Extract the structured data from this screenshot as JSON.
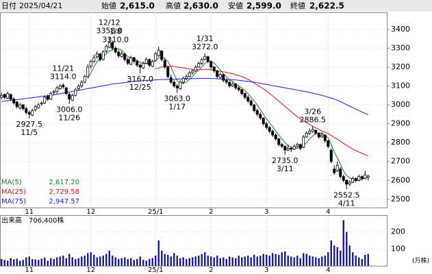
{
  "chart_data": {
    "type": "candlestick",
    "header": [
      {
        "label": "日付",
        "value": "2025/04/21"
      },
      {
        "label": "始値",
        "value": "2,615.0"
      },
      {
        "label": "高値",
        "value": "2,630.0"
      },
      {
        "label": "安値",
        "value": "2,599.0"
      },
      {
        "label": "終値",
        "value": "2,622.5"
      }
    ],
    "ylim": [
      2456,
      3490
    ],
    "yticks": [
      2500,
      2600,
      2700,
      2800,
      2900,
      3000,
      3100,
      3200,
      3300,
      3400
    ],
    "xticks": [
      {
        "value": 9,
        "label": "11"
      },
      {
        "value": 29,
        "label": "12"
      },
      {
        "value": 50,
        "label": "25/1"
      },
      {
        "value": 68,
        "label": "2"
      },
      {
        "value": 86,
        "label": "3"
      },
      {
        "value": 106,
        "label": "4"
      }
    ],
    "ohlc": [
      [
        3040,
        3065,
        3030,
        3050
      ],
      [
        3055,
        3060,
        3030,
        3040
      ],
      [
        3035,
        3070,
        3030,
        3060
      ],
      [
        3055,
        3060,
        3020,
        3030
      ],
      [
        3030,
        3040,
        3000,
        3010
      ],
      [
        3015,
        3020,
        2980,
        2990
      ],
      [
        2985,
        3010,
        2975,
        3000
      ],
      [
        3000,
        3005,
        2970,
        2980
      ],
      [
        2980,
        2990,
        2950,
        2960
      ],
      [
        2960,
        2970,
        2927.5,
        2950
      ],
      [
        2945,
        2980,
        2940,
        2970
      ],
      [
        2975,
        3000,
        2965,
        2990
      ],
      [
        2985,
        3010,
        2980,
        3000
      ],
      [
        3005,
        3020,
        2995,
        3010
      ],
      [
        3010,
        3050,
        3005,
        3040
      ],
      [
        3045,
        3055,
        3020,
        3030
      ],
      [
        3030,
        3070,
        3025,
        3060
      ],
      [
        3065,
        3080,
        3050,
        3070
      ],
      [
        3070,
        3100,
        3060,
        3090
      ],
      [
        3085,
        3110,
        3080,
        3100
      ],
      [
        3105,
        3114,
        3085,
        3095
      ],
      [
        3090,
        3095,
        3050,
        3060
      ],
      [
        3055,
        3065,
        3006,
        3030
      ],
      [
        3025,
        3060,
        3020,
        3050
      ],
      [
        3050,
        3090,
        3045,
        3080
      ],
      [
        3085,
        3110,
        3075,
        3100
      ],
      [
        3100,
        3130,
        3090,
        3120
      ],
      [
        3120,
        3160,
        3115,
        3150
      ],
      [
        3150,
        3215,
        3145,
        3200
      ],
      [
        3205,
        3240,
        3190,
        3230
      ],
      [
        3230,
        3265,
        3220,
        3250
      ],
      [
        3255,
        3285,
        3245,
        3270
      ],
      [
        3270,
        3275,
        3230,
        3240
      ],
      [
        3240,
        3290,
        3235,
        3280
      ],
      [
        3285,
        3320,
        3275,
        3310
      ],
      [
        3305,
        3358,
        3300,
        3330
      ],
      [
        3330,
        3340,
        3290,
        3300
      ],
      [
        3300,
        3310,
        3270,
        3280
      ],
      [
        3280,
        3290,
        3250,
        3260
      ],
      [
        3255,
        3285,
        3250,
        3270
      ],
      [
        3270,
        3275,
        3230,
        3240
      ],
      [
        3240,
        3250,
        3210,
        3220
      ],
      [
        3215,
        3260,
        3210,
        3250
      ],
      [
        3250,
        3255,
        3220,
        3230
      ],
      [
        3230,
        3240,
        3200,
        3210
      ],
      [
        3210,
        3220,
        3167,
        3200
      ],
      [
        3195,
        3230,
        3190,
        3220
      ],
      [
        3220,
        3250,
        3215,
        3240
      ],
      [
        3240,
        3245,
        3200,
        3210
      ],
      [
        3205,
        3240,
        3200,
        3230
      ],
      [
        3235,
        3280,
        3230,
        3270
      ],
      [
        3260,
        3310,
        3255,
        3290
      ],
      [
        3285,
        3290,
        3230,
        3240
      ],
      [
        3235,
        3245,
        3190,
        3200
      ],
      [
        3200,
        3205,
        3140,
        3150
      ],
      [
        3145,
        3160,
        3110,
        3120
      ],
      [
        3120,
        3130,
        3090,
        3100
      ],
      [
        3100,
        3110,
        3063,
        3090
      ],
      [
        3085,
        3130,
        3080,
        3120
      ],
      [
        3120,
        3150,
        3110,
        3140
      ],
      [
        3140,
        3160,
        3130,
        3150
      ],
      [
        3150,
        3180,
        3145,
        3170
      ],
      [
        3170,
        3190,
        3160,
        3180
      ],
      [
        3180,
        3210,
        3175,
        3200
      ],
      [
        3200,
        3230,
        3195,
        3220
      ],
      [
        3220,
        3250,
        3210,
        3240
      ],
      [
        3240,
        3272,
        3235,
        3255
      ],
      [
        3255,
        3260,
        3220,
        3230
      ],
      [
        3230,
        3235,
        3190,
        3200
      ],
      [
        3200,
        3205,
        3170,
        3180
      ],
      [
        3180,
        3185,
        3140,
        3150
      ],
      [
        3145,
        3170,
        3140,
        3160
      ],
      [
        3160,
        3165,
        3120,
        3130
      ],
      [
        3130,
        3140,
        3110,
        3120
      ],
      [
        3120,
        3125,
        3090,
        3100
      ],
      [
        3100,
        3120,
        3095,
        3110
      ],
      [
        3110,
        3115,
        3080,
        3090
      ],
      [
        3090,
        3100,
        3070,
        3080
      ],
      [
        3080,
        3085,
        3050,
        3060
      ],
      [
        3060,
        3065,
        3030,
        3040
      ],
      [
        3040,
        3050,
        3010,
        3020
      ],
      [
        3020,
        3030,
        2990,
        3000
      ],
      [
        3000,
        3005,
        2960,
        2970
      ],
      [
        2970,
        2980,
        2940,
        2950
      ],
      [
        2950,
        2960,
        2920,
        2930
      ],
      [
        2930,
        2935,
        2890,
        2900
      ],
      [
        2900,
        2910,
        2870,
        2880
      ],
      [
        2880,
        2890,
        2850,
        2860
      ],
      [
        2860,
        2870,
        2830,
        2840
      ],
      [
        2840,
        2850,
        2810,
        2820
      ],
      [
        2820,
        2825,
        2780,
        2790
      ],
      [
        2790,
        2800,
        2770,
        2780
      ],
      [
        2780,
        2785,
        2735,
        2760
      ],
      [
        2760,
        2790,
        2755,
        2770
      ],
      [
        2770,
        2780,
        2750,
        2765
      ],
      [
        2765,
        2790,
        2760,
        2780
      ],
      [
        2780,
        2800,
        2770,
        2790
      ],
      [
        2790,
        2795,
        2760,
        2770
      ],
      [
        2775,
        2840,
        2770,
        2830
      ],
      [
        2830,
        2860,
        2825,
        2850
      ],
      [
        2850,
        2875,
        2840,
        2860
      ],
      [
        2860,
        2886.5,
        2850,
        2870
      ],
      [
        2865,
        2870,
        2840,
        2850
      ],
      [
        2850,
        2855,
        2820,
        2830
      ],
      [
        2830,
        2855,
        2825,
        2840
      ],
      [
        2840,
        2845,
        2800,
        2810
      ],
      [
        2810,
        2815,
        2770,
        2780
      ],
      [
        2760,
        2770,
        2690,
        2700
      ],
      [
        2660,
        2680,
        2630,
        2640
      ],
      [
        2650,
        2700,
        2645,
        2680
      ],
      [
        2660,
        2670,
        2610,
        2620
      ],
      [
        2620,
        2630,
        2590,
        2600
      ],
      [
        2600,
        2605,
        2552.5,
        2580
      ],
      [
        2580,
        2600,
        2570,
        2590
      ],
      [
        2590,
        2620,
        2585,
        2610
      ],
      [
        2610,
        2615,
        2590,
        2600
      ],
      [
        2600,
        2630,
        2595,
        2620
      ],
      [
        2620,
        2625,
        2600,
        2610
      ],
      [
        2610,
        2650,
        2605,
        2630
      ],
      [
        2615,
        2630,
        2599,
        2622.5
      ]
    ],
    "annotations": [
      {
        "date": "12/12",
        "value": 3358,
        "value_label": "3358.0"
      },
      {
        "date": "1/8",
        "value": 3310,
        "value_label": "3310.0"
      },
      {
        "date": "1/31",
        "value": 3272,
        "value_label": "3272.0"
      },
      {
        "date": "11/21",
        "value": 3114,
        "value_label": "3114.0"
      },
      {
        "date": "3/26",
        "value": 2886.5
      },
      {
        "date": "11/5",
        "value": 2927.5
      },
      {
        "date": "11/26",
        "value": 3006,
        "value_label": "3006.0"
      },
      {
        "date": "12/25",
        "value": 3167,
        "value_label": "3167.0"
      },
      {
        "date": "1/17",
        "value": 3063,
        "value_label": "3063.0"
      },
      {
        "date": "3/11",
        "value": 2735,
        "value_label": "2735.0"
      },
      {
        "date": "4/11",
        "value": 2552.5
      }
    ],
    "series": [
      {
        "name": "MA(5)",
        "color": "#1a7a1a",
        "last_label": "2,617.20",
        "values": [
          null,
          null,
          null,
          null,
          null,
          null,
          null,
          null,
          null,
          null,
          null,
          null,
          null,
          null,
          null,
          null,
          null,
          null,
          null,
          null,
          null,
          null,
          null,
          null,
          null,
          null,
          null,
          null,
          3140,
          3170,
          3200,
          3230,
          3240,
          3255,
          3270,
          3285,
          3290,
          3300,
          3295,
          3290,
          3270,
          3255,
          3250,
          3240,
          3235,
          3225,
          3220,
          3220,
          3215,
          3220,
          3235,
          3250,
          3250,
          3245,
          3230,
          3200,
          3160,
          3130,
          3115,
          3115,
          3120,
          3135,
          3150,
          3170,
          3185,
          3200,
          3220,
          3230,
          3230,
          3220,
          3205,
          3185,
          3165,
          3150,
          3130,
          3125,
          3110,
          3100,
          3090,
          3075,
          3060,
          3040,
          3020,
          3000,
          2975,
          2950,
          2925,
          2905,
          2885,
          2860,
          2840,
          2820,
          2800,
          2785,
          2775,
          2770,
          2770,
          2775,
          2785,
          2800,
          2820,
          2835,
          2850,
          2850,
          2850,
          2840,
          2825,
          2790,
          2750,
          2720,
          2685,
          2650,
          2625,
          2615,
          2600,
          2600,
          2600,
          2605,
          2615,
          2617.2
        ]
      },
      {
        "name": "MA(25)",
        "color": "#e01010",
        "last_label": "2,729.58",
        "values": [
          null,
          null,
          null,
          null,
          null,
          null,
          null,
          null,
          null,
          null,
          null,
          null,
          null,
          null,
          null,
          null,
          null,
          null,
          null,
          null,
          null,
          null,
          null,
          null,
          null,
          null,
          null,
          null,
          null,
          null,
          null,
          null,
          null,
          null,
          null,
          null,
          null,
          null,
          null,
          null,
          null,
          null,
          null,
          null,
          null,
          null,
          null,
          null,
          null,
          null,
          3190,
          3195,
          3200,
          3205,
          3205,
          3205,
          3203,
          3200,
          3198,
          3196,
          3193,
          3190,
          3188,
          3186,
          3186,
          3187,
          3188,
          3188,
          3186,
          3183,
          3180,
          3178,
          3175,
          3172,
          3168,
          3165,
          3160,
          3155,
          3150,
          3143,
          3135,
          3125,
          3115,
          3105,
          3095,
          3085,
          3073,
          3060,
          3047,
          3034,
          3020,
          3006,
          2992,
          2978,
          2964,
          2950,
          2937,
          2925,
          2915,
          2905,
          2895,
          2886,
          2878,
          2870,
          2862,
          2855,
          2848,
          2838,
          2827,
          2818,
          2807,
          2796,
          2785,
          2775,
          2766,
          2758,
          2750,
          2743,
          2736,
          2729.58
        ]
      },
      {
        "name": "MA(75)",
        "color": "#1a1ae0",
        "last_label": "2,947.57",
        "values": [
          3018,
          3020,
          3022,
          3024,
          3026,
          3028,
          3030,
          3032,
          3034,
          3036,
          3038,
          3040,
          3042,
          3044,
          3046,
          3048,
          3050,
          3053,
          3056,
          3059,
          3062,
          3065,
          3068,
          3071,
          3074,
          3077,
          3080,
          3083,
          3086,
          3089,
          3092,
          3095,
          3098,
          3101,
          3104,
          3107,
          3110,
          3112,
          3114,
          3116,
          3118,
          3120,
          3122,
          3124,
          3126,
          3127,
          3128,
          3129,
          3130,
          3131,
          3132,
          3133,
          3134,
          3134,
          3135,
          3135,
          3136,
          3136,
          3137,
          3137,
          3138,
          3138,
          3139,
          3139,
          3140,
          3140,
          3140,
          3140,
          3139,
          3139,
          3138,
          3137,
          3136,
          3135,
          3134,
          3133,
          3132,
          3130,
          3128,
          3126,
          3124,
          3122,
          3120,
          3117,
          3114,
          3111,
          3108,
          3105,
          3102,
          3099,
          3096,
          3093,
          3090,
          3087,
          3084,
          3081,
          3078,
          3075,
          3072,
          3069,
          3066,
          3062,
          3058,
          3054,
          3050,
          3046,
          3041,
          3036,
          3030,
          3024,
          3017,
          3009,
          3001,
          2993,
          2985,
          2977,
          2970,
          2962,
          2955,
          2947.57
        ]
      }
    ],
    "volume": {
      "label": "出来高",
      "last_label": "706,400株",
      "unit": "(万株)",
      "color": "#1a1a90",
      "ylim": [
        0,
        300
      ],
      "yticks": [
        100,
        200
      ],
      "values": [
        40,
        35,
        30,
        45,
        38,
        42,
        30,
        35,
        50,
        55,
        40,
        38,
        35,
        42,
        48,
        30,
        45,
        40,
        50,
        55,
        60,
        45,
        70,
        50,
        40,
        45,
        55,
        60,
        75,
        80,
        65,
        50,
        55,
        60,
        70,
        90,
        60,
        50,
        40,
        45,
        50,
        40,
        45,
        35,
        40,
        55,
        35,
        30,
        40,
        45,
        60,
        150,
        90,
        70,
        65,
        55,
        75,
        60,
        45,
        50,
        40,
        45,
        50,
        55,
        60,
        70,
        80,
        60,
        55,
        50,
        60,
        45,
        50,
        40,
        55,
        50,
        45,
        60,
        50,
        55,
        60,
        50,
        65,
        55,
        60,
        70,
        65,
        60,
        75,
        70,
        65,
        80,
        85,
        60,
        55,
        50,
        60,
        45,
        75,
        70,
        60,
        55,
        50,
        45,
        55,
        60,
        80,
        150,
        120,
        110,
        90,
        270,
        200,
        120,
        80,
        60,
        50,
        40,
        65,
        70.64
      ]
    }
  }
}
